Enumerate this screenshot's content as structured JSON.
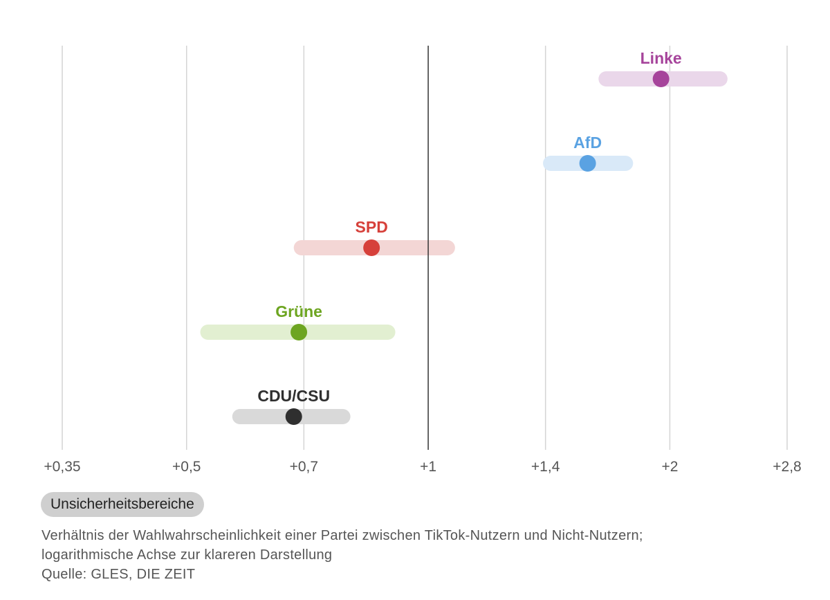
{
  "chart_data": {
    "type": "scatter",
    "scale": "log",
    "xlim": [
      0.35,
      2.8
    ],
    "ticks": [
      {
        "value": 0.35,
        "label": "+0,35"
      },
      {
        "value": 0.5,
        "label": "+0,5"
      },
      {
        "value": 0.7,
        "label": "+0,7"
      },
      {
        "value": 1,
        "label": "+1"
      },
      {
        "value": 1.4,
        "label": "+1,4"
      },
      {
        "value": 2,
        "label": "+2"
      },
      {
        "value": 2.8,
        "label": "+2,8"
      }
    ],
    "reference_line": 1,
    "series": [
      {
        "name": "Linke",
        "value": 1.95,
        "low": 1.63,
        "high": 2.36,
        "color": "#a6449b",
        "band_color": "#ead7ea"
      },
      {
        "name": "AfD",
        "value": 1.58,
        "low": 1.39,
        "high": 1.8,
        "color": "#5aa2e2",
        "band_color": "#d9e9f8"
      },
      {
        "name": "SPD",
        "value": 0.85,
        "low": 0.68,
        "high": 1.08,
        "color": "#d6403a",
        "band_color": "#f3d6d5"
      },
      {
        "name": "Grüne",
        "value": 0.69,
        "low": 0.52,
        "high": 0.91,
        "color": "#6da521",
        "band_color": "#e2efd1"
      },
      {
        "name": "CDU/CSU",
        "value": 0.68,
        "low": 0.57,
        "high": 0.8,
        "color": "#2f2f2f",
        "band_color": "#d9d9d9"
      }
    ]
  },
  "legend": {
    "label": "Unsicherheitsbereiche"
  },
  "caption": {
    "line1": "Verhältnis der Wahlwahrscheinlichkeit einer Partei zwischen TikTok-Nutzern und Nicht-Nutzern;",
    "line2": "logarithmische Achse zur klareren Darstellung",
    "source": "Quelle: GLES, DIE ZEIT"
  }
}
